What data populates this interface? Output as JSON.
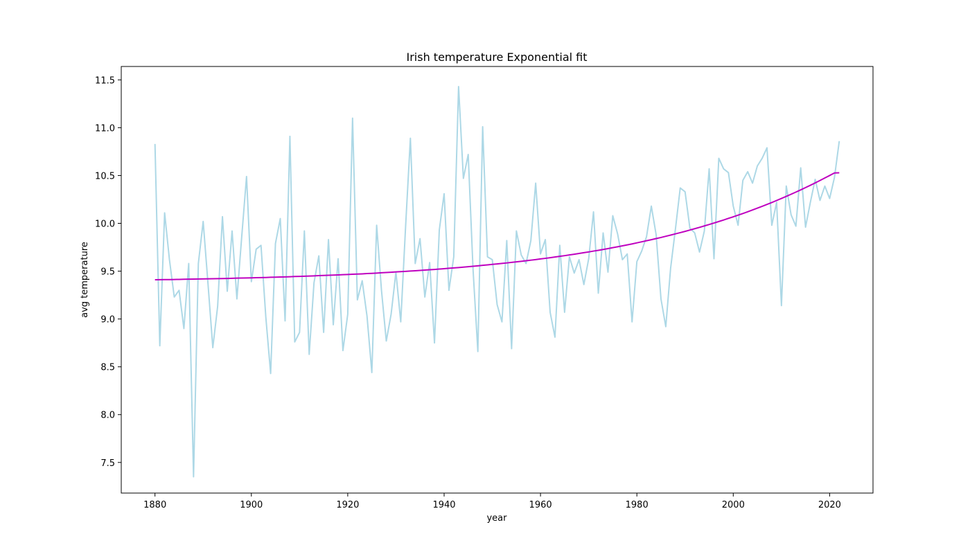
{
  "chart_data": {
    "type": "line",
    "title": "Irish temperature Exponential fit",
    "xlabel": "year",
    "ylabel": "avg temperature",
    "xlim": [
      1873,
      2029
    ],
    "ylim": [
      7.18,
      11.64
    ],
    "xticks": [
      "1880",
      "1900",
      "1920",
      "1940",
      "1960",
      "1980",
      "2000",
      "2020"
    ],
    "yticks": [
      "7.5",
      "8.0",
      "8.5",
      "9.0",
      "9.5",
      "10.0",
      "10.5",
      "11.0",
      "11.5"
    ],
    "grid": false,
    "legend": "none",
    "x": [
      1880,
      1881,
      1882,
      1883,
      1884,
      1885,
      1886,
      1887,
      1888,
      1889,
      1890,
      1891,
      1892,
      1893,
      1894,
      1895,
      1896,
      1897,
      1898,
      1899,
      1900,
      1901,
      1902,
      1903,
      1904,
      1905,
      1906,
      1907,
      1908,
      1909,
      1910,
      1911,
      1912,
      1913,
      1914,
      1915,
      1916,
      1917,
      1918,
      1919,
      1920,
      1921,
      1922,
      1923,
      1924,
      1925,
      1926,
      1927,
      1928,
      1929,
      1930,
      1931,
      1932,
      1933,
      1934,
      1935,
      1936,
      1937,
      1938,
      1939,
      1940,
      1941,
      1942,
      1943,
      1944,
      1945,
      1946,
      1947,
      1948,
      1949,
      1950,
      1951,
      1952,
      1953,
      1954,
      1955,
      1956,
      1957,
      1958,
      1959,
      1960,
      1961,
      1962,
      1963,
      1964,
      1965,
      1966,
      1967,
      1968,
      1969,
      1970,
      1971,
      1972,
      1973,
      1974,
      1975,
      1976,
      1977,
      1978,
      1979,
      1980,
      1981,
      1982,
      1983,
      1984,
      1985,
      1986,
      1987,
      1988,
      1989,
      1990,
      1991,
      1992,
      1993,
      1994,
      1995,
      1996,
      1997,
      1998,
      1999,
      2000,
      2001,
      2002,
      2003,
      2004,
      2005,
      2006,
      2007,
      2008,
      2009,
      2010,
      2011,
      2012,
      2013,
      2014,
      2015,
      2016,
      2017,
      2018,
      2019,
      2020,
      2021,
      2022
    ],
    "series": [
      {
        "color": "#add8e6",
        "values": [
          10.83,
          8.72,
          10.11,
          9.62,
          9.23,
          9.3,
          8.9,
          9.58,
          7.35,
          9.58,
          10.02,
          9.37,
          8.7,
          9.13,
          10.07,
          9.29,
          9.92,
          9.21,
          9.86,
          10.49,
          9.39,
          9.73,
          9.77,
          9.02,
          8.43,
          9.79,
          10.05,
          8.98,
          10.91,
          8.76,
          8.86,
          9.92,
          8.63,
          9.38,
          9.66,
          8.86,
          9.83,
          8.94,
          9.63,
          8.67,
          9.05,
          11.1,
          9.2,
          9.4,
          9.03,
          8.44,
          9.98,
          9.3,
          8.77,
          9.05,
          9.49,
          8.97,
          9.96,
          10.89,
          9.58,
          9.84,
          9.23,
          9.59,
          8.75,
          9.93,
          10.31,
          9.3,
          9.65,
          11.43,
          10.47,
          10.72,
          9.52,
          8.66,
          11.01,
          9.65,
          9.62,
          9.15,
          8.97,
          9.82,
          8.69,
          9.92,
          9.67,
          9.58,
          9.82,
          10.42,
          9.68,
          9.83,
          9.07,
          8.81,
          9.77,
          9.07,
          9.65,
          9.48,
          9.62,
          9.36,
          9.63,
          10.12,
          9.27,
          9.9,
          9.49,
          10.08,
          9.89,
          9.62,
          9.68,
          8.97,
          9.6,
          9.71,
          9.86,
          10.18,
          9.88,
          9.21,
          8.92,
          9.53,
          9.94,
          10.37,
          10.33,
          9.95,
          9.9,
          9.7,
          9.92,
          10.57,
          9.63,
          10.68,
          10.57,
          10.53,
          10.18,
          9.98,
          10.45,
          10.54,
          10.42,
          10.6,
          10.68,
          10.79,
          9.98,
          10.22,
          9.14,
          10.39,
          10.09,
          9.97,
          10.58,
          9.96,
          10.22,
          10.46,
          10.24,
          10.39,
          10.26,
          10.48,
          10.86
        ]
      },
      {
        "color": "#bf00bf",
        "values": [
          9.41,
          9.411,
          9.412,
          9.412,
          9.413,
          9.414,
          9.415,
          9.416,
          9.417,
          9.418,
          9.419,
          9.42,
          9.421,
          9.422,
          9.423,
          9.424,
          9.425,
          9.427,
          9.428,
          9.429,
          9.43,
          9.432,
          9.433,
          9.434,
          9.436,
          9.437,
          9.439,
          9.44,
          9.442,
          9.444,
          9.445,
          9.447,
          9.449,
          9.451,
          9.453,
          9.455,
          9.457,
          9.459,
          9.461,
          9.463,
          9.465,
          9.468,
          9.47,
          9.472,
          9.475,
          9.477,
          9.48,
          9.483,
          9.486,
          9.489,
          9.492,
          9.495,
          9.498,
          9.501,
          9.504,
          9.508,
          9.511,
          9.515,
          9.518,
          9.522,
          9.526,
          9.53,
          9.534,
          9.538,
          9.542,
          9.547,
          9.551,
          9.556,
          9.561,
          9.566,
          9.571,
          9.576,
          9.581,
          9.586,
          9.592,
          9.597,
          9.603,
          9.609,
          9.615,
          9.621,
          9.628,
          9.634,
          9.641,
          9.648,
          9.655,
          9.662,
          9.67,
          9.677,
          9.685,
          9.693,
          9.701,
          9.71,
          9.718,
          9.727,
          9.736,
          9.746,
          9.755,
          9.765,
          9.775,
          9.785,
          9.796,
          9.807,
          9.818,
          9.829,
          9.841,
          9.852,
          9.865,
          9.877,
          9.89,
          9.903,
          9.916,
          9.93,
          9.944,
          9.958,
          9.973,
          9.988,
          10.003,
          10.019,
          10.035,
          10.052,
          10.068,
          10.086,
          10.103,
          10.121,
          10.14,
          10.159,
          10.178,
          10.198,
          10.218,
          10.239,
          10.26,
          10.282,
          10.304,
          10.327,
          10.35,
          10.374,
          10.398,
          10.423,
          10.448,
          10.474,
          10.5,
          10.527,
          10.529
        ]
      }
    ]
  }
}
